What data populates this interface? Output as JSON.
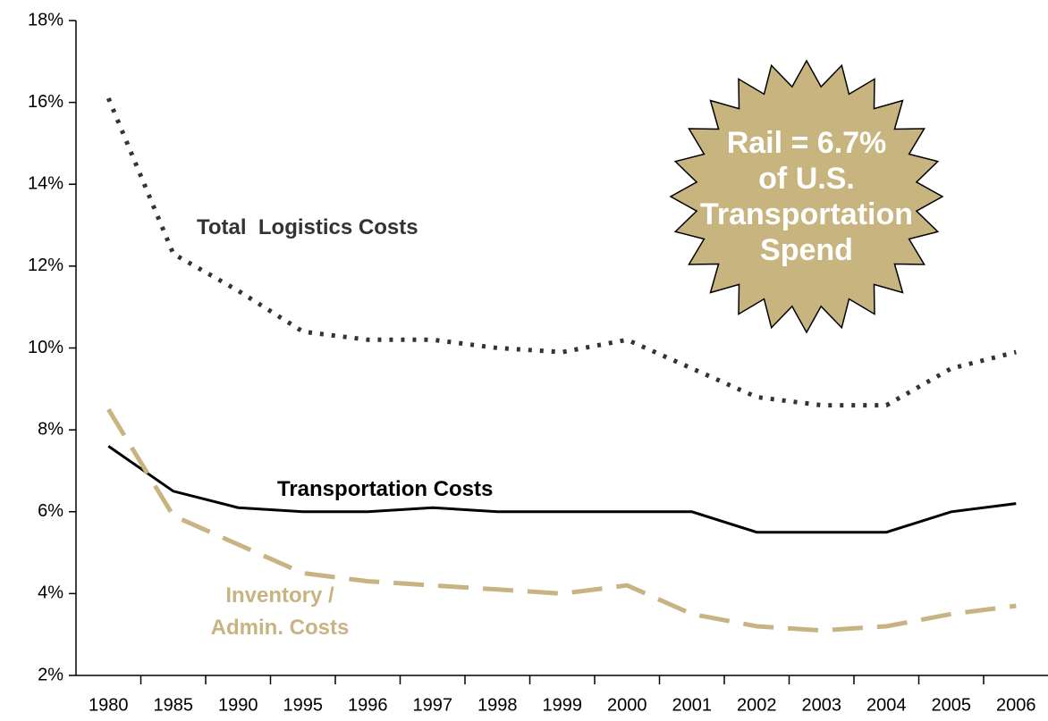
{
  "chart_data": {
    "type": "line",
    "categories": [
      "1980",
      "1985",
      "1990",
      "1995",
      "1996",
      "1997",
      "1998",
      "1999",
      "2000",
      "2001",
      "2002",
      "2003",
      "2004",
      "2005",
      "2006"
    ],
    "series": [
      {
        "name": "Total  Logistics Costs",
        "color": "#333333",
        "dash": "dotted",
        "values": [
          16.1,
          12.3,
          11.4,
          10.4,
          10.2,
          10.2,
          10.0,
          9.9,
          10.2,
          9.5,
          8.8,
          8.6,
          8.6,
          9.5,
          9.9
        ]
      },
      {
        "name": "Transportation Costs",
        "color": "#000000",
        "dash": "solid",
        "values": [
          7.6,
          6.5,
          6.1,
          6.0,
          6.0,
          6.1,
          6.0,
          6.0,
          6.0,
          6.0,
          5.5,
          5.5,
          5.5,
          6.0,
          6.2
        ]
      },
      {
        "name": "Inventory / Admin. Costs",
        "color": "#c8b482",
        "dash": "dashed",
        "values": [
          8.5,
          5.9,
          5.2,
          4.5,
          4.3,
          4.2,
          4.1,
          4.0,
          4.2,
          3.5,
          3.2,
          3.1,
          3.2,
          3.5,
          3.7
        ]
      }
    ],
    "annotation": [
      "Rail = 6.7%",
      "of U.S.",
      "Transportation",
      "Spend"
    ],
    "ylim": [
      2,
      18
    ],
    "yticks": [
      {
        "value": 2,
        "label": "2%"
      },
      {
        "value": 4,
        "label": "4%"
      },
      {
        "value": 6,
        "label": "6%"
      },
      {
        "value": 8,
        "label": "8%"
      },
      {
        "value": 10,
        "label": "10%"
      },
      {
        "value": 12,
        "label": "12%"
      },
      {
        "value": 14,
        "label": "14%"
      },
      {
        "value": 16,
        "label": "16%"
      },
      {
        "value": 18,
        "label": "18%"
      }
    ],
    "grid": false
  }
}
